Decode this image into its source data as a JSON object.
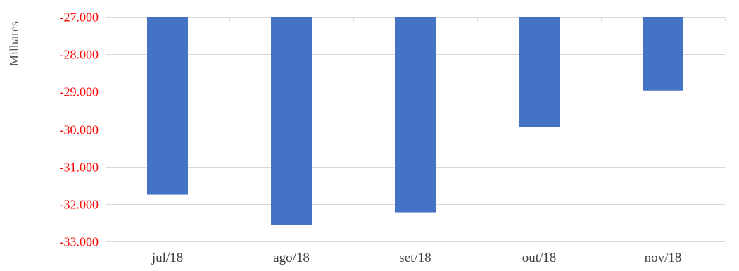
{
  "chart_data": {
    "type": "bar",
    "title": "",
    "xlabel": "",
    "ylabel": "Milhares",
    "categories": [
      "jul/18",
      "ago/18",
      "set/18",
      "out/18",
      "nov/18"
    ],
    "values": [
      -31.75,
      -32.55,
      -32.22,
      -29.95,
      -28.97
    ],
    "baseline": -27,
    "ylim": [
      -33,
      -27
    ],
    "yticks": [
      -27,
      -28,
      -29,
      -30,
      -31,
      -32,
      -33
    ],
    "ytick_labels": [
      "-27.000",
      "-28.000",
      "-29.000",
      "-30.000",
      "-31.000",
      "-32.000",
      "-33.000"
    ],
    "grid": true,
    "legend": "none",
    "colors": {
      "bar": "#4472c4",
      "tick_label_y": "#ff0000",
      "tick_label_x": "#404040",
      "gridline": "#d9d9d9"
    }
  }
}
